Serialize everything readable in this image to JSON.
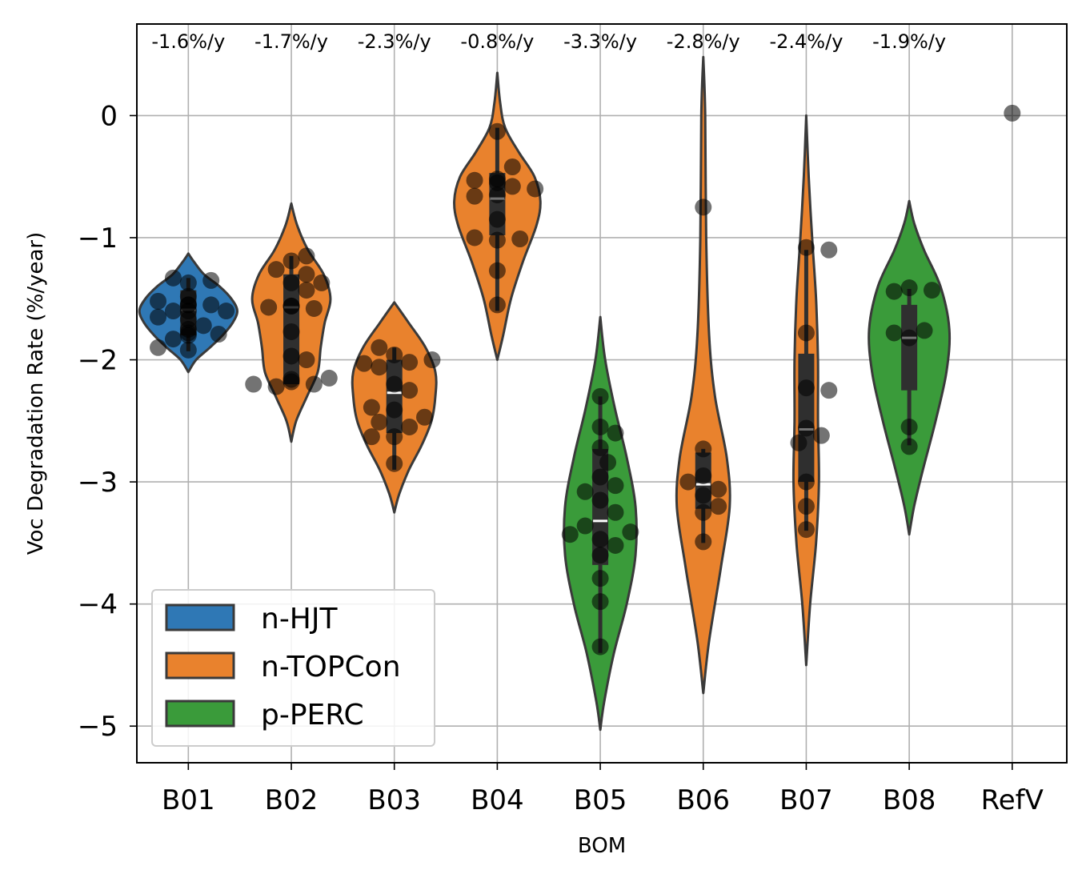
{
  "chart_data": {
    "type": "violin",
    "xlabel": "BOM",
    "ylabel": "Voc Degradation Rate (%/year)",
    "categories": [
      "B01",
      "B02",
      "B03",
      "B04",
      "B05",
      "B06",
      "B07",
      "B08",
      "RefV"
    ],
    "ylim": [
      -5.3,
      0.75
    ],
    "yticks": [
      0,
      -1,
      -2,
      -3,
      -4,
      -5
    ],
    "ytick_labels": [
      "0",
      "−1",
      "−2",
      "−3",
      "−4",
      "−5"
    ],
    "grid": true,
    "legend_position": "lower-left",
    "colors": {
      "n-HJT": "#2f78b5",
      "n-TOPCon": "#e9822d",
      "p-PERC": "#3a9b3a",
      "edge": "#3a3a3a",
      "point": "#000000"
    },
    "legend": [
      {
        "name": "n-HJT",
        "color": "#2f78b5"
      },
      {
        "name": "n-TOPCon",
        "color": "#e9822d"
      },
      {
        "name": "p-PERC",
        "color": "#3a9b3a"
      }
    ],
    "annotations": [
      "-1.6%/y",
      "-1.7%/y",
      "-2.3%/y",
      "-0.8%/y",
      "-3.3%/y",
      "-2.8%/y",
      "-2.4%/y",
      "-1.9%/y"
    ],
    "series": [
      {
        "category": "B01",
        "technology": "n-HJT",
        "median": -1.59,
        "q1": -1.8,
        "q3": -1.43,
        "wmin": -1.93,
        "wmax": -1.33,
        "violin": [
          [
            -2.1,
            0
          ],
          [
            -2.0,
            0.08
          ],
          [
            -1.9,
            0.22
          ],
          [
            -1.8,
            0.35
          ],
          [
            -1.7,
            0.45
          ],
          [
            -1.6,
            0.5
          ],
          [
            -1.5,
            0.44
          ],
          [
            -1.4,
            0.32
          ],
          [
            -1.3,
            0.16
          ],
          [
            -1.2,
            0.06
          ],
          [
            -1.13,
            0
          ]
        ],
        "points": [
          -1.55,
          -1.55,
          -1.6,
          -1.78,
          -1.37,
          -1.6,
          -1.72,
          -1.83,
          -1.52,
          -1.65,
          -1.48,
          -1.79,
          -1.92,
          -1.9,
          -1.75,
          -1.67,
          -1.35,
          -1.6,
          -1.8,
          -1.33,
          -1.55
        ]
      },
      {
        "category": "B02",
        "technology": "n-TOPCon",
        "median": -1.57,
        "q1": -2.2,
        "q3": -1.3,
        "wmin": -2.2,
        "wmax": -1.15,
        "violin": [
          [
            -2.67,
            0
          ],
          [
            -2.5,
            0.05
          ],
          [
            -2.3,
            0.16
          ],
          [
            -2.1,
            0.27
          ],
          [
            -1.9,
            0.3
          ],
          [
            -1.7,
            0.34
          ],
          [
            -1.5,
            0.4
          ],
          [
            -1.3,
            0.33
          ],
          [
            -1.1,
            0.17
          ],
          [
            -0.9,
            0.06
          ],
          [
            -0.72,
            0
          ]
        ],
        "points": [
          -2.18,
          -2.2,
          -1.56,
          -1.37,
          -1.19,
          -2.22,
          -1.97,
          -1.43,
          -1.58,
          -2.0,
          -1.15,
          -1.77,
          -1.3,
          -2.2,
          -1.57,
          -1.26,
          -1.56,
          -1.37,
          -2.15,
          -2.16
        ]
      },
      {
        "category": "B03",
        "technology": "n-TOPCon",
        "median": -2.27,
        "q1": -2.6,
        "q3": -2.0,
        "wmin": -2.9,
        "wmax": -1.9,
        "violin": [
          [
            -3.25,
            0
          ],
          [
            -3.1,
            0.05
          ],
          [
            -2.9,
            0.15
          ],
          [
            -2.7,
            0.28
          ],
          [
            -2.5,
            0.38
          ],
          [
            -2.3,
            0.42
          ],
          [
            -2.1,
            0.42
          ],
          [
            -1.9,
            0.32
          ],
          [
            -1.7,
            0.15
          ],
          [
            -1.53,
            0
          ]
        ],
        "points": [
          -1.96,
          -2.63,
          -2.2,
          -2.41,
          -2.02,
          -2.55,
          -1.9,
          -2.06,
          -2.63,
          -2.85,
          -2.51,
          -2.47,
          -2.25,
          -2.03,
          -2.39,
          -2.0
        ]
      },
      {
        "category": "B04",
        "technology": "n-TOPCon",
        "median": -0.68,
        "q1": -0.98,
        "q3": -0.47,
        "wmin": -1.6,
        "wmax": -0.1,
        "violin": [
          [
            -2.0,
            0
          ],
          [
            -1.8,
            0.06
          ],
          [
            -1.5,
            0.14
          ],
          [
            -1.2,
            0.26
          ],
          [
            -0.9,
            0.4
          ],
          [
            -0.7,
            0.44
          ],
          [
            -0.5,
            0.38
          ],
          [
            -0.3,
            0.22
          ],
          [
            -0.1,
            0.08
          ],
          [
            0.1,
            0.03
          ],
          [
            0.35,
            0
          ]
        ],
        "points": [
          -0.65,
          -0.52,
          -1.02,
          -0.58,
          -0.42,
          -0.66,
          -1.27,
          -0.13,
          -0.53,
          -0.85,
          -1.01,
          -1.55,
          -0.6,
          -0.55,
          -1.0
        ]
      },
      {
        "category": "B05",
        "technology": "p-PERC",
        "median": -3.32,
        "q1": -3.68,
        "q3": -2.73,
        "wmin": -4.4,
        "wmax": -2.3,
        "violin": [
          [
            -5.03,
            0
          ],
          [
            -4.8,
            0.04
          ],
          [
            -4.4,
            0.14
          ],
          [
            -4.0,
            0.27
          ],
          [
            -3.6,
            0.36
          ],
          [
            -3.2,
            0.36
          ],
          [
            -2.8,
            0.27
          ],
          [
            -2.4,
            0.15
          ],
          [
            -2.0,
            0.05
          ],
          [
            -1.65,
            0
          ]
        ],
        "points": [
          -2.55,
          -3.6,
          -2.72,
          -3.15,
          -2.96,
          -4.35,
          -3.25,
          -3.98,
          -3.79,
          -3.47,
          -3.36,
          -2.6,
          -2.84,
          -2.3,
          -3.03,
          -3.52,
          -3.08,
          -3.41,
          -3.43
        ]
      },
      {
        "category": "B06",
        "technology": "n-TOPCon",
        "median": -3.02,
        "q1": -3.22,
        "q3": -2.76,
        "wmin": -3.5,
        "wmax": -2.73,
        "violin": [
          [
            -4.73,
            0
          ],
          [
            -4.3,
            0.06
          ],
          [
            -3.7,
            0.18
          ],
          [
            -3.2,
            0.27
          ],
          [
            -2.8,
            0.24
          ],
          [
            -2.3,
            0.12
          ],
          [
            -1.8,
            0.06
          ],
          [
            -1.0,
            0.03
          ],
          [
            0.0,
            0.02
          ],
          [
            0.48,
            0
          ]
        ],
        "points": [
          -2.95,
          -3.11,
          -3.25,
          -3.06,
          -3.49,
          -2.73,
          -0.75,
          -3.2,
          -3.0
        ]
      },
      {
        "category": "B07",
        "technology": "n-TOPCon",
        "median": -2.57,
        "q1": -3.0,
        "q3": -1.95,
        "wmin": -3.4,
        "wmax": -1.1,
        "violin": [
          [
            -4.5,
            0
          ],
          [
            -4.0,
            0.04
          ],
          [
            -3.5,
            0.1
          ],
          [
            -3.0,
            0.13
          ],
          [
            -2.5,
            0.12
          ],
          [
            -2.0,
            0.12
          ],
          [
            -1.5,
            0.1
          ],
          [
            -1.0,
            0.06
          ],
          [
            -0.5,
            0.025
          ],
          [
            0.0,
            0
          ]
        ],
        "points": [
          -2.56,
          -3.0,
          -2.62,
          -1.78,
          -2.23,
          -3.2,
          -1.08,
          -3.39,
          -2.68,
          -2.25,
          -1.1
        ]
      },
      {
        "category": "B08",
        "technology": "p-PERC",
        "median": -1.82,
        "q1": -2.25,
        "q3": -1.55,
        "wmin": -2.7,
        "wmax": -1.42,
        "violin": [
          [
            -3.43,
            0
          ],
          [
            -3.2,
            0.05
          ],
          [
            -2.9,
            0.14
          ],
          [
            -2.5,
            0.27
          ],
          [
            -2.1,
            0.38
          ],
          [
            -1.75,
            0.41
          ],
          [
            -1.4,
            0.32
          ],
          [
            -1.1,
            0.15
          ],
          [
            -0.88,
            0.05
          ],
          [
            -0.7,
            0
          ]
        ],
        "points": [
          -1.41,
          -1.82,
          -2.55,
          -2.71,
          -1.43,
          -1.76,
          -1.78,
          -1.44
        ]
      },
      {
        "category": "RefV",
        "technology": "",
        "points": [
          0.02
        ]
      }
    ]
  }
}
